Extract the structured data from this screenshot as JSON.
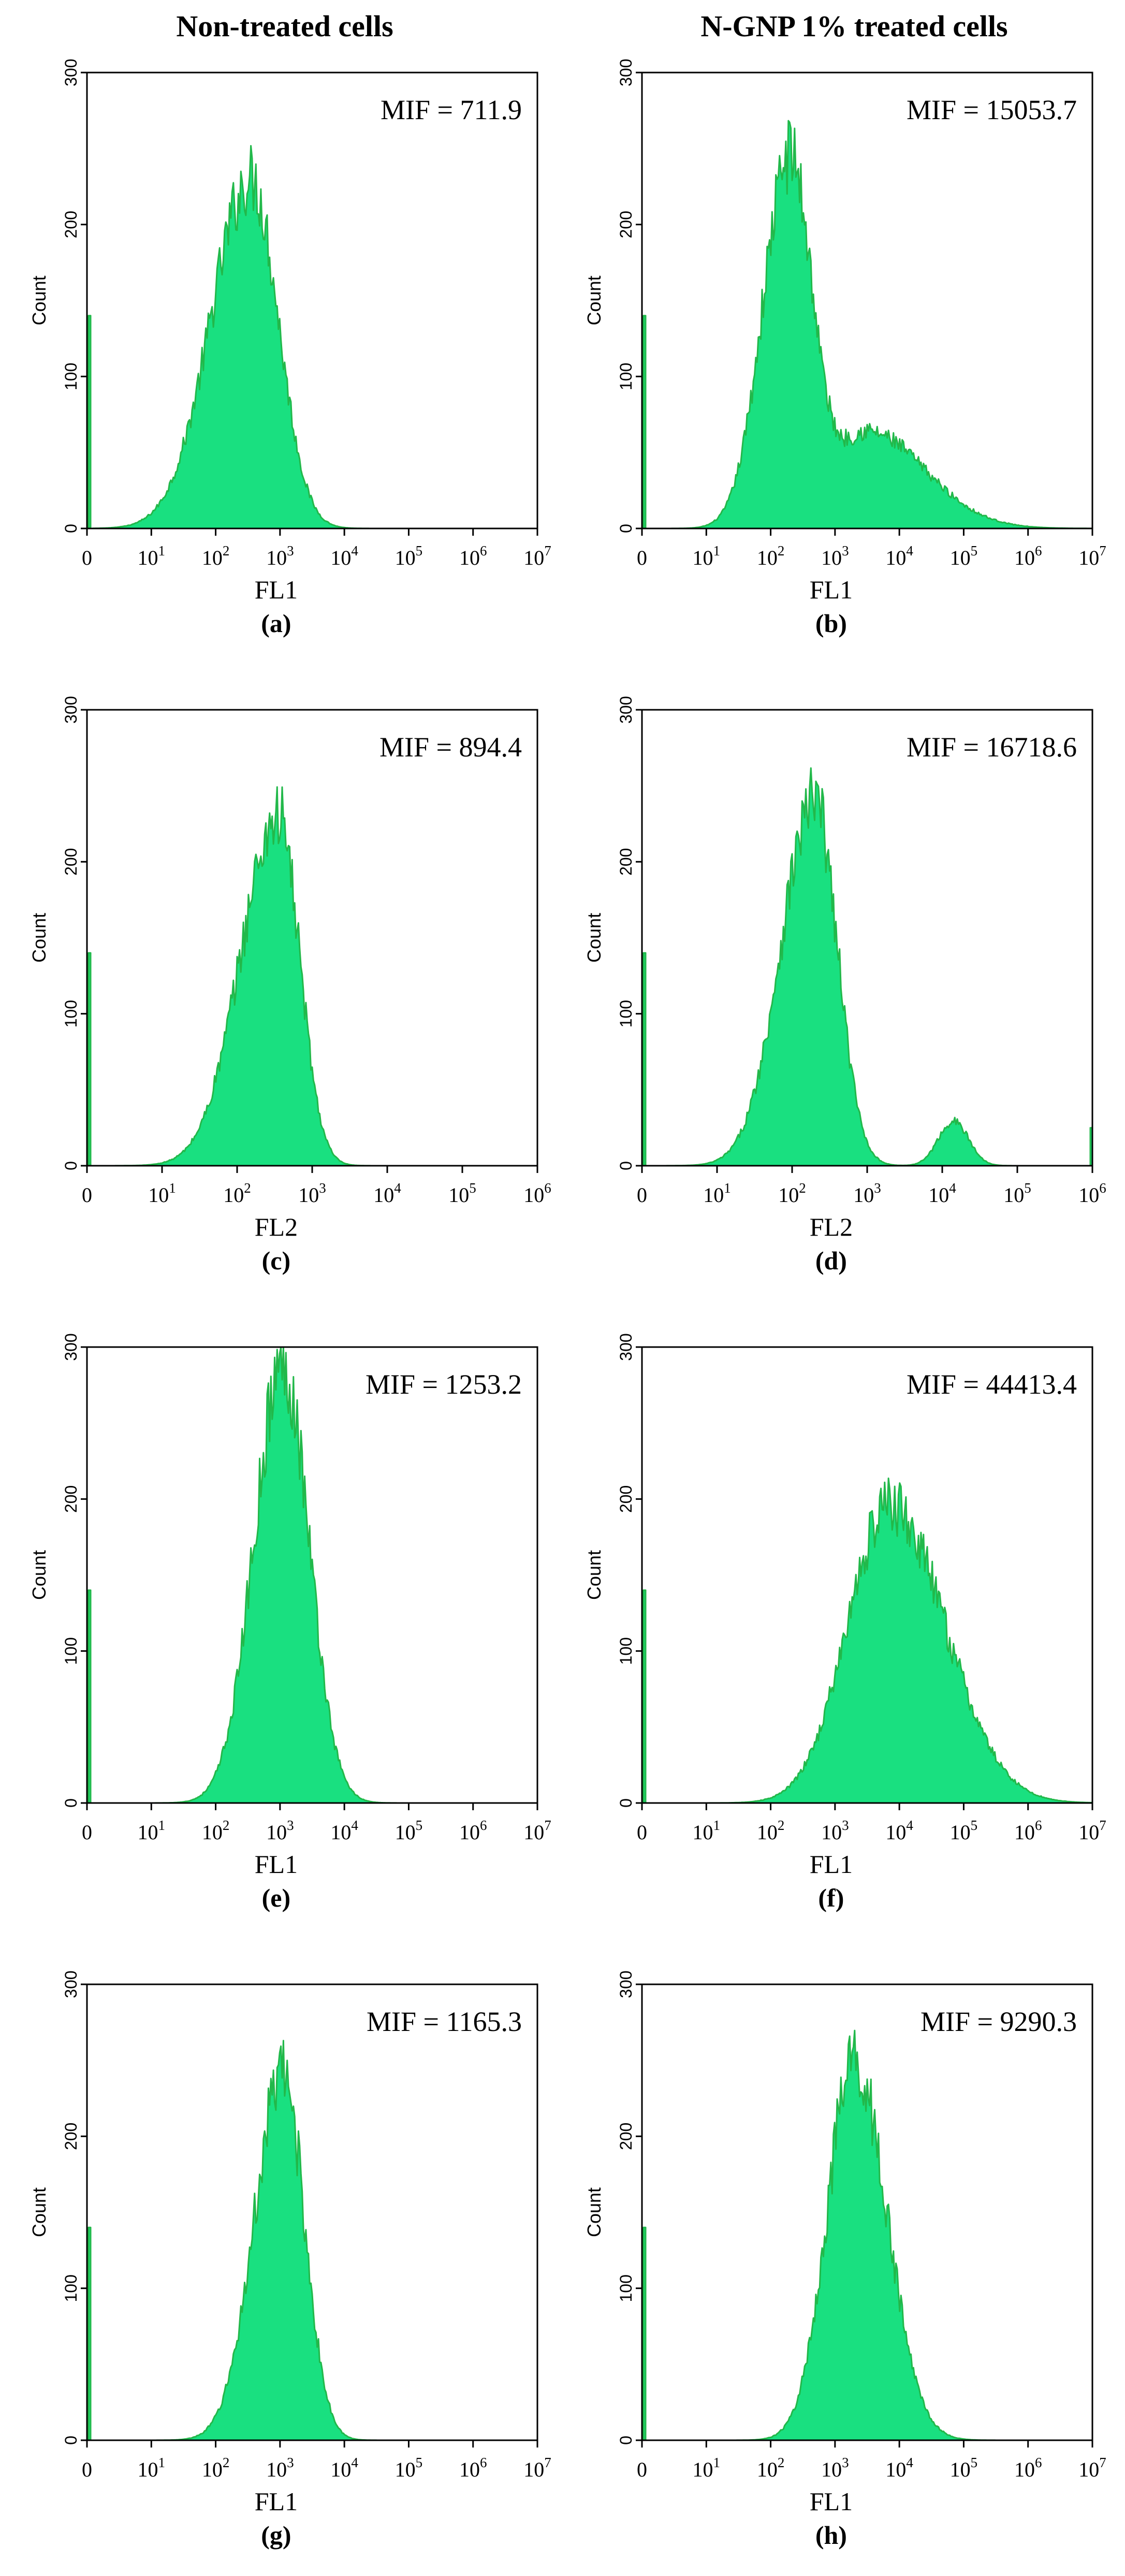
{
  "column_titles": [
    "Non-treated cells",
    "N-GNP 1% treated cells"
  ],
  "colors": {
    "fill": "#19e080",
    "outline": "#22b84a",
    "axis": "#000000"
  },
  "chart_data": [
    {
      "type": "area",
      "panel_label": "(a)",
      "annotation": "MIF = 711.9",
      "xlabel": "FL1",
      "ylabel": "Count",
      "xscale": "log",
      "xlim_decades": [
        0,
        7
      ],
      "x_ticks": [
        "0",
        "10",
        "10",
        "10",
        "10",
        "10",
        "10",
        "10"
      ],
      "x_tick_exponents": [
        "",
        "1",
        "2",
        "3",
        "4",
        "5",
        "6",
        "7"
      ],
      "ylim": [
        0,
        300
      ],
      "y_ticks": [
        "0",
        "100",
        "200",
        "300"
      ],
      "zero_channel_count": 140,
      "peaks": [
        {
          "log10_center": 2.55,
          "count": 235,
          "sigma_left": 0.62,
          "sigma_right": 0.42
        }
      ]
    },
    {
      "type": "area",
      "panel_label": "(b)",
      "annotation": "MIF = 15053.7",
      "xlabel": "FL1",
      "ylabel": "Count",
      "xscale": "log",
      "xlim_decades": [
        0,
        7
      ],
      "x_ticks": [
        "0",
        "10",
        "10",
        "10",
        "10",
        "10",
        "10",
        "10"
      ],
      "x_tick_exponents": [
        "",
        "1",
        "2",
        "3",
        "4",
        "5",
        "6",
        "7"
      ],
      "ylim": [
        0,
        300
      ],
      "y_ticks": [
        "0",
        "100",
        "200",
        "300"
      ],
      "zero_channel_count": 140,
      "peaks": [
        {
          "log10_center": 2.3,
          "count": 250,
          "sigma_left": 0.42,
          "sigma_right": 0.35
        },
        {
          "log10_center": 3.5,
          "count": 65,
          "sigma_left": 0.45,
          "sigma_right": 0.9
        }
      ]
    },
    {
      "type": "area",
      "panel_label": "(c)",
      "annotation": "MIF = 894.4",
      "xlabel": "FL2",
      "ylabel": "Count",
      "xscale": "log",
      "xlim_decades": [
        0,
        6
      ],
      "x_ticks": [
        "0",
        "10",
        "10",
        "10",
        "10",
        "10",
        "10"
      ],
      "x_tick_exponents": [
        "",
        "1",
        "2",
        "3",
        "4",
        "5",
        "6"
      ],
      "ylim": [
        0,
        300
      ],
      "y_ticks": [
        "0",
        "100",
        "200",
        "300"
      ],
      "zero_channel_count": 140,
      "peaks": [
        {
          "log10_center": 2.55,
          "count": 235,
          "sigma_left": 0.5,
          "sigma_right": 0.28
        }
      ]
    },
    {
      "type": "area",
      "panel_label": "(d)",
      "annotation": "MIF = 16718.6",
      "xlabel": "FL2",
      "ylabel": "Count",
      "xscale": "log",
      "xlim_decades": [
        0,
        6
      ],
      "x_ticks": [
        "0",
        "10",
        "10",
        "10",
        "10",
        "10",
        "10"
      ],
      "x_tick_exponents": [
        "",
        "1",
        "2",
        "3",
        "4",
        "5",
        "6"
      ],
      "ylim": [
        0,
        300
      ],
      "y_ticks": [
        "0",
        "100",
        "200",
        "300"
      ],
      "zero_channel_count": 140,
      "end_channel_count": 25,
      "peaks": [
        {
          "log10_center": 2.3,
          "count": 245,
          "sigma_left": 0.45,
          "sigma_right": 0.3
        },
        {
          "log10_center": 4.15,
          "count": 30,
          "sigma_left": 0.2,
          "sigma_right": 0.2
        }
      ]
    },
    {
      "type": "area",
      "panel_label": "(e)",
      "annotation": "MIF = 1253.2",
      "xlabel": "FL1",
      "ylabel": "Count",
      "xscale": "log",
      "xlim_decades": [
        0,
        7
      ],
      "x_ticks": [
        "0",
        "10",
        "10",
        "10",
        "10",
        "10",
        "10",
        "10"
      ],
      "x_tick_exponents": [
        "",
        "1",
        "2",
        "3",
        "4",
        "5",
        "6",
        "7"
      ],
      "ylim": [
        0,
        300
      ],
      "y_ticks": [
        "0",
        "100",
        "200",
        "300"
      ],
      "zero_channel_count": 140,
      "peaks": [
        {
          "log10_center": 3.05,
          "count": 295,
          "sigma_left": 0.45,
          "sigma_right": 0.4
        }
      ]
    },
    {
      "type": "area",
      "panel_label": "(f)",
      "annotation": "MIF = 44413.4",
      "xlabel": "FL1",
      "ylabel": "Count",
      "xscale": "log",
      "xlim_decades": [
        0,
        7
      ],
      "x_ticks": [
        "0",
        "10",
        "10",
        "10",
        "10",
        "10",
        "10",
        "10"
      ],
      "x_tick_exponents": [
        "",
        "1",
        "2",
        "3",
        "4",
        "5",
        "6",
        "7"
      ],
      "ylim": [
        0,
        300
      ],
      "y_ticks": [
        "0",
        "100",
        "200",
        "300"
      ],
      "zero_channel_count": 140,
      "peaks": [
        {
          "log10_center": 3.85,
          "count": 200,
          "sigma_left": 0.65,
          "sigma_right": 0.85
        }
      ]
    },
    {
      "type": "area",
      "panel_label": "(g)",
      "annotation": "MIF = 1165.3",
      "xlabel": "FL1",
      "ylabel": "Count",
      "xscale": "log",
      "xlim_decades": [
        0,
        7
      ],
      "x_ticks": [
        "0",
        "10",
        "10",
        "10",
        "10",
        "10",
        "10",
        "10"
      ],
      "x_tick_exponents": [
        "",
        "1",
        "2",
        "3",
        "4",
        "5",
        "6",
        "7"
      ],
      "ylim": [
        0,
        300
      ],
      "y_ticks": [
        "0",
        "100",
        "200",
        "300"
      ],
      "zero_channel_count": 140,
      "peaks": [
        {
          "log10_center": 3.05,
          "count": 245,
          "sigma_left": 0.45,
          "sigma_right": 0.33
        }
      ]
    },
    {
      "type": "area",
      "panel_label": "(h)",
      "annotation": "MIF = 9290.3",
      "xlabel": "FL1",
      "ylabel": "Count",
      "xscale": "log",
      "xlim_decades": [
        0,
        7
      ],
      "x_ticks": [
        "0",
        "10",
        "10",
        "10",
        "10",
        "10",
        "10",
        "10"
      ],
      "x_tick_exponents": [
        "",
        "1",
        "2",
        "3",
        "4",
        "5",
        "6",
        "7"
      ],
      "ylim": [
        0,
        300
      ],
      "y_ticks": [
        "0",
        "100",
        "200",
        "300"
      ],
      "zero_channel_count": 140,
      "peaks": [
        {
          "log10_center": 3.3,
          "count": 255,
          "sigma_left": 0.42,
          "sigma_right": 0.5
        }
      ]
    }
  ]
}
